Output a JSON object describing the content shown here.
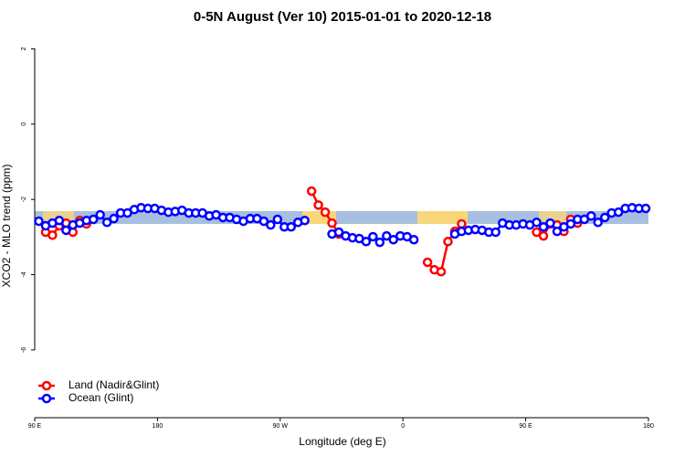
{
  "chart_data": {
    "type": "line",
    "title": "0-5N August (Ver 10)   2015-01-01 to 2020-12-18",
    "x_label": "Longitude (deg E)",
    "y_label": "XCO2 - MLO trend (ppm)",
    "xlim": [
      90,
      540
    ],
    "ylim": [
      -7.8,
      2.4
    ],
    "xticks": [
      {
        "value": 90,
        "label": "90 E"
      },
      180,
      {
        "value": 270,
        "label": "90 W"
      },
      {
        "value": 360,
        "label": "0"
      },
      {
        "value": 450,
        "label": "90 E"
      },
      {
        "value": 540,
        "label": "180"
      }
    ],
    "yticks": [
      -6,
      -4,
      -2,
      0,
      2
    ],
    "legend": "bottom-left",
    "x": [
      93,
      98,
      103,
      108,
      113,
      118,
      123,
      128,
      133,
      138,
      143,
      148,
      153,
      158,
      163,
      168,
      173,
      178,
      183,
      188,
      193,
      198,
      203,
      208,
      213,
      218,
      223,
      228,
      233,
      238,
      243,
      248,
      253,
      258,
      263,
      268,
      273,
      278,
      283,
      288,
      293,
      298,
      303,
      308,
      313,
      318,
      323,
      328,
      333,
      338,
      343,
      348,
      353,
      358,
      363,
      368,
      373,
      378,
      383,
      388,
      393,
      398,
      403,
      408,
      413,
      418,
      423,
      428,
      433,
      438,
      443,
      448,
      453,
      458,
      463,
      468,
      473,
      478,
      483,
      488,
      493,
      498,
      503,
      508,
      513,
      518,
      523,
      528,
      533,
      538
    ],
    "series": [
      {
        "name": "Land (Nadir&Glint)",
        "color": "#ff0000",
        "values": [
          null,
          -2.87,
          -2.95,
          -2.7,
          -2.63,
          -2.87,
          -2.56,
          -2.65,
          null,
          null,
          null,
          null,
          null,
          null,
          null,
          null,
          null,
          null,
          null,
          null,
          null,
          null,
          null,
          null,
          null,
          null,
          null,
          null,
          null,
          null,
          null,
          null,
          null,
          null,
          null,
          null,
          null,
          null,
          -2.61,
          null,
          -1.78,
          -2.15,
          -2.34,
          -2.63,
          -2.92,
          null,
          null,
          null,
          null,
          null,
          null,
          null,
          null,
          null,
          null,
          null,
          null,
          -3.67,
          -3.87,
          -3.92,
          -3.12,
          -2.85,
          -2.65,
          null,
          null,
          null,
          null,
          null,
          null,
          null,
          null,
          null,
          null,
          -2.87,
          -2.97,
          -2.65,
          -2.68,
          -2.85,
          -2.53,
          -2.63,
          null,
          null,
          null,
          null,
          null,
          null,
          null,
          null,
          null,
          null
        ]
      },
      {
        "name": "Ocean (Glint)",
        "color": "#0000ff",
        "values": [
          -2.58,
          -2.7,
          -2.63,
          -2.56,
          -2.82,
          -2.68,
          -2.63,
          -2.56,
          -2.53,
          -2.41,
          -2.61,
          -2.51,
          -2.36,
          -2.36,
          -2.27,
          -2.22,
          -2.24,
          -2.24,
          -2.29,
          -2.34,
          -2.32,
          -2.29,
          -2.36,
          -2.36,
          -2.36,
          -2.44,
          -2.41,
          -2.48,
          -2.48,
          -2.53,
          -2.58,
          -2.51,
          -2.51,
          -2.58,
          -2.68,
          -2.53,
          -2.73,
          -2.73,
          -2.61,
          -2.56,
          null,
          null,
          null,
          -2.92,
          -2.87,
          -2.97,
          -3.02,
          -3.04,
          -3.12,
          -2.99,
          -3.14,
          -2.97,
          -3.07,
          -2.97,
          -2.99,
          -3.07,
          null,
          null,
          null,
          null,
          null,
          -2.92,
          -2.85,
          -2.82,
          -2.8,
          -2.82,
          -2.87,
          -2.87,
          -2.63,
          -2.68,
          -2.68,
          -2.65,
          -2.68,
          -2.61,
          -2.73,
          -2.63,
          -2.85,
          -2.73,
          -2.65,
          -2.53,
          -2.53,
          -2.44,
          -2.61,
          -2.48,
          -2.36,
          -2.34,
          -2.24,
          -2.22,
          -2.24,
          -2.24
        ]
      }
    ]
  }
}
